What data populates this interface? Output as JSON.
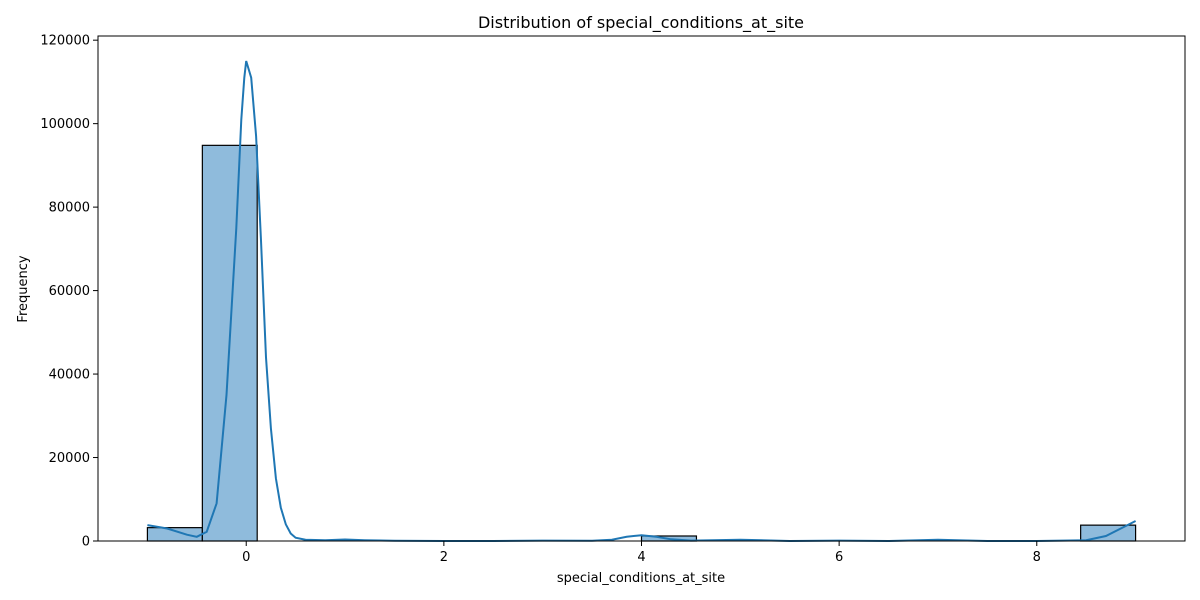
{
  "chart_data": {
    "type": "bar",
    "title": "Distribution of special_conditions_at_site",
    "xlabel": "special_conditions_at_site",
    "ylabel": "Frequency",
    "xlim": [
      -1.5,
      9.5
    ],
    "ylim": [
      0,
      121000
    ],
    "x_ticks": [
      0,
      2,
      4,
      6,
      8
    ],
    "y_ticks": [
      0,
      20000,
      40000,
      60000,
      80000,
      100000,
      120000
    ],
    "bar_color": "#8fbbdc",
    "line_color": "#1f77b4",
    "bins": [
      {
        "x0": -1.0,
        "x1": -0.444,
        "count": 3200
      },
      {
        "x0": -0.444,
        "x1": 0.111,
        "count": 94800
      },
      {
        "x0": 0.111,
        "x1": 0.667,
        "count": 0
      },
      {
        "x0": 0.667,
        "x1": 1.222,
        "count": 0
      },
      {
        "x0": 1.222,
        "x1": 1.778,
        "count": 0
      },
      {
        "x0": 1.778,
        "x1": 2.333,
        "count": 0
      },
      {
        "x0": 2.333,
        "x1": 2.889,
        "count": 0
      },
      {
        "x0": 2.889,
        "x1": 3.444,
        "count": 0
      },
      {
        "x0": 3.444,
        "x1": 4.0,
        "count": 0
      },
      {
        "x0": 4.0,
        "x1": 4.556,
        "count": 1200
      },
      {
        "x0": 4.556,
        "x1": 5.111,
        "count": 0
      },
      {
        "x0": 5.111,
        "x1": 5.667,
        "count": 0
      },
      {
        "x0": 5.667,
        "x1": 6.222,
        "count": 0
      },
      {
        "x0": 6.222,
        "x1": 6.778,
        "count": 0
      },
      {
        "x0": 6.778,
        "x1": 7.333,
        "count": 0
      },
      {
        "x0": 7.333,
        "x1": 7.889,
        "count": 0
      },
      {
        "x0": 7.889,
        "x1": 8.444,
        "count": 0
      },
      {
        "x0": 8.444,
        "x1": 9.0,
        "count": 3800
      }
    ],
    "kde": [
      [
        -1.0,
        3800
      ],
      [
        -0.8,
        3000
      ],
      [
        -0.6,
        1500
      ],
      [
        -0.5,
        1000
      ],
      [
        -0.4,
        2200
      ],
      [
        -0.3,
        9000
      ],
      [
        -0.2,
        35000
      ],
      [
        -0.1,
        75000
      ],
      [
        -0.05,
        101000
      ],
      [
        -0.02,
        111000
      ],
      [
        0.0,
        115000
      ],
      [
        0.05,
        111000
      ],
      [
        0.1,
        97000
      ],
      [
        0.15,
        72000
      ],
      [
        0.2,
        44000
      ],
      [
        0.25,
        27000
      ],
      [
        0.3,
        15000
      ],
      [
        0.35,
        8000
      ],
      [
        0.4,
        4000
      ],
      [
        0.45,
        1800
      ],
      [
        0.5,
        800
      ],
      [
        0.6,
        300
      ],
      [
        0.8,
        200
      ],
      [
        1.0,
        350
      ],
      [
        1.2,
        200
      ],
      [
        1.5,
        50
      ],
      [
        2.0,
        0
      ],
      [
        2.5,
        0
      ],
      [
        3.0,
        100
      ],
      [
        3.5,
        50
      ],
      [
        3.7,
        300
      ],
      [
        3.85,
        1000
      ],
      [
        4.0,
        1400
      ],
      [
        4.15,
        1000
      ],
      [
        4.3,
        400
      ],
      [
        4.5,
        100
      ],
      [
        5.0,
        300
      ],
      [
        5.5,
        0
      ],
      [
        6.0,
        100
      ],
      [
        6.5,
        0
      ],
      [
        7.0,
        300
      ],
      [
        7.5,
        0
      ],
      [
        8.0,
        0
      ],
      [
        8.5,
        200
      ],
      [
        8.7,
        1200
      ],
      [
        8.85,
        3000
      ],
      [
        9.0,
        4800
      ]
    ]
  }
}
